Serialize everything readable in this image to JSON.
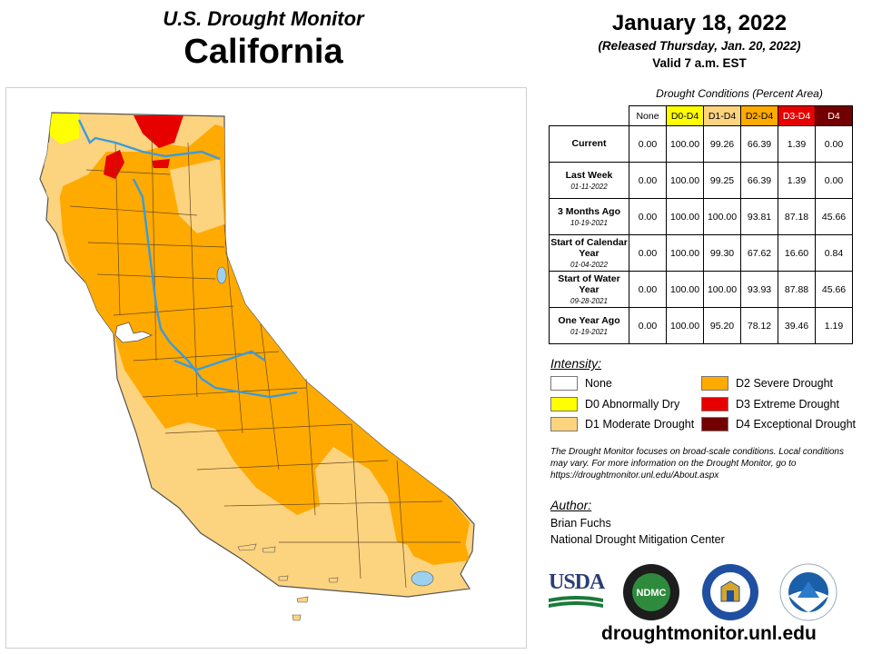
{
  "header": {
    "subtitle": "U.S. Drought Monitor",
    "state": "California",
    "date": "January 18, 2022",
    "released": "(Released Thursday, Jan. 20, 2022)",
    "valid": "Valid 7 a.m. EST"
  },
  "table": {
    "caption": "Drought Conditions (Percent Area)",
    "columns": [
      "None",
      "D0-D4",
      "D1-D4",
      "D2-D4",
      "D3-D4",
      "D4"
    ],
    "column_colors": [
      "#ffffff",
      "#ffff00",
      "#fcd37f",
      "#ffaa00",
      "#e60000",
      "#730000"
    ],
    "rows": [
      {
        "label": "Current",
        "date": "",
        "values": [
          "0.00",
          "100.00",
          "99.26",
          "66.39",
          "1.39",
          "0.00"
        ]
      },
      {
        "label": "Last Week",
        "date": "01-11-2022",
        "values": [
          "0.00",
          "100.00",
          "99.25",
          "66.39",
          "1.39",
          "0.00"
        ]
      },
      {
        "label": "3 Months Ago",
        "date": "10-19-2021",
        "values": [
          "0.00",
          "100.00",
          "100.00",
          "93.81",
          "87.18",
          "45.66"
        ]
      },
      {
        "label": "Start of Calendar Year",
        "date": "01-04-2022",
        "values": [
          "0.00",
          "100.00",
          "99.30",
          "67.62",
          "16.60",
          "0.84"
        ]
      },
      {
        "label": "Start of Water Year",
        "date": "09-28-2021",
        "values": [
          "0.00",
          "100.00",
          "100.00",
          "93.93",
          "87.88",
          "45.66"
        ]
      },
      {
        "label": "One Year Ago",
        "date": "01-19-2021",
        "values": [
          "0.00",
          "100.00",
          "95.20",
          "78.12",
          "39.46",
          "1.19"
        ]
      }
    ]
  },
  "legend": {
    "title": "Intensity:",
    "items": [
      {
        "label": "None",
        "color": "#ffffff"
      },
      {
        "label": "D0 Abnormally Dry",
        "color": "#ffff00"
      },
      {
        "label": "D1 Moderate Drought",
        "color": "#fcd37f"
      },
      {
        "label": "D2 Severe Drought",
        "color": "#ffaa00"
      },
      {
        "label": "D3 Extreme Drought",
        "color": "#e60000"
      },
      {
        "label": "D4 Exceptional Drought",
        "color": "#730000"
      }
    ]
  },
  "note": "The Drought Monitor focuses on broad-scale conditions. Local conditions may vary. For more information on the Drought Monitor, go to https://droughtmonitor.unl.edu/About.aspx",
  "author": {
    "title": "Author:",
    "name": "Brian Fuchs",
    "org": "National Drought Mitigation Center"
  },
  "logos": {
    "usda": "USDA",
    "ndmc": "NDMC"
  },
  "url": "droughtmonitor.unl.edu",
  "colors": {
    "d0": "#ffff00",
    "d1": "#fcd37f",
    "d2": "#ffaa00",
    "d3": "#e60000",
    "d4": "#730000",
    "river": "#3a9bdc",
    "water": "#9cd0ee"
  }
}
